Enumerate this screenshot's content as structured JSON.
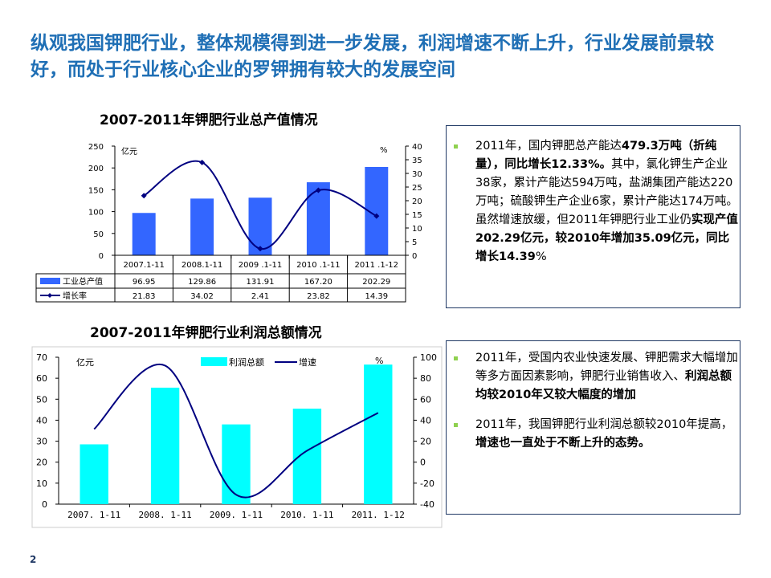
{
  "title": "纵观我国钾肥行业，整体规模得到进一步发展，利润增速不断上升，行业发展前景较好，而处于行业核心企业的罗钾拥有较大的发展空间",
  "page_number": "2",
  "colors": {
    "bar1": "#3366ff",
    "bar2": "#00ffff",
    "line": "#000080",
    "title": "#1f6fb5"
  },
  "chart_data": [
    {
      "type": "bar+line",
      "title": "2007-2011年钾肥行业总产值情况",
      "categories": [
        "2007.1-11",
        "2008.1-11",
        "2009 .1-11",
        "2010 .1-11",
        "2011 .1-12"
      ],
      "series": [
        {
          "name": "工业总产值",
          "axis": "left",
          "values": [
            96.95,
            129.86,
            131.91,
            167.2,
            202.29
          ]
        },
        {
          "name": "增长率",
          "axis": "right",
          "values": [
            21.83,
            34.02,
            2.41,
            23.82,
            14.39
          ]
        }
      ],
      "left_unit": "亿元",
      "right_unit": "%",
      "ylim_left": [
        0,
        250
      ],
      "ylim_right": [
        0,
        40
      ],
      "left_ticks": [
        "0",
        "50",
        "100",
        "150",
        "200",
        "250"
      ],
      "right_ticks": [
        "0",
        "5",
        "10",
        "15",
        "20",
        "25",
        "30",
        "35",
        "40"
      ],
      "value_labels": [
        [
          "96.95",
          "129.86",
          "131.91",
          "167.20",
          "202.29"
        ],
        [
          "21.83",
          "34.02",
          "2.41",
          "23.82",
          "14.39"
        ]
      ]
    },
    {
      "type": "bar+line",
      "title": "2007-2011年钾肥行业利润总额情况",
      "categories": [
        "2007. 1-11",
        "2008. 1-11",
        "2009. 1-11",
        "2010. 1-11",
        "2011. 1-12"
      ],
      "series": [
        {
          "name": "利润总额",
          "axis": "left",
          "values": [
            28.5,
            55.5,
            38,
            45.5,
            66.5
          ]
        },
        {
          "name": "增速",
          "axis": "right",
          "values": [
            31.5,
            92,
            -31,
            11,
            47
          ]
        }
      ],
      "left_unit": "亿元",
      "right_unit": "%",
      "ylim_left": [
        0,
        70
      ],
      "ylim_right": [
        -40,
        100
      ],
      "left_ticks": [
        "0",
        "10",
        "20",
        "30",
        "40",
        "50",
        "60",
        "70"
      ],
      "right_ticks": [
        "-40",
        "-20",
        "0",
        "20",
        "40",
        "60",
        "80",
        "100"
      ],
      "legend": "top"
    }
  ],
  "box1": [
    {
      "parts": [
        [
          "2011年，国内钾肥总产能达",
          0
        ],
        [
          "479.3万吨（折纯量），同比增长12.33%。",
          1
        ],
        [
          "其中，氯化钾生产企业38家，累计产能达594万吨，盐湖集团产能达220万吨；硫酸钾生产企业6家，累计产能达174万吨。虽然增速放缓，但2011年钾肥行业工业仍",
          0
        ],
        [
          "实现产值202.29亿元，较2010年增加35.09亿元，同比增长14.39",
          1
        ],
        [
          "%",
          0
        ]
      ]
    }
  ],
  "box2": [
    {
      "parts": [
        [
          "2011年，受国内农业快速发展、钾肥需求大幅增加等多方面因素影响，钾肥行业销售收入、",
          0
        ],
        [
          "利润总额均较2010年又较大幅度的增加",
          1
        ]
      ]
    },
    {
      "parts": [
        [
          "2011年，我国钾肥行业利润总额较2010年提高，",
          0
        ],
        [
          "增速也一直处于不断上升的态势。",
          1
        ]
      ]
    }
  ]
}
